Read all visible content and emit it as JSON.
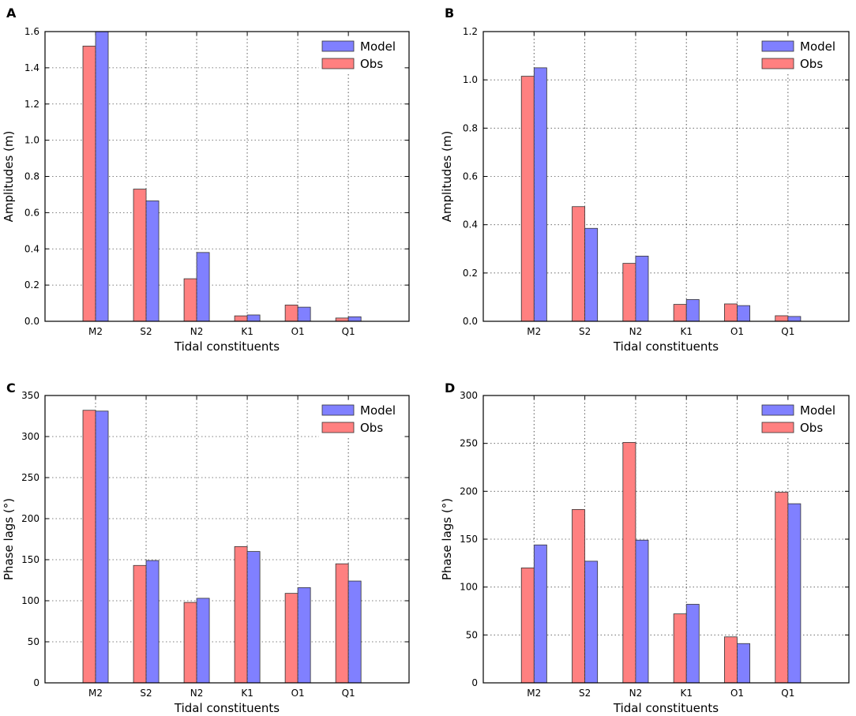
{
  "colors": {
    "model": "#8080ff",
    "obs": "#ff8080",
    "edge": "#333333"
  },
  "chart_data": [
    {
      "panel": "A",
      "type": "bar",
      "xlabel": "Tidal constituents",
      "ylabel": "Amplitudes (m)",
      "categories": [
        "M2",
        "S2",
        "N2",
        "K1",
        "O1",
        "Q1"
      ],
      "ylim": [
        0,
        1.6
      ],
      "yticks": [
        "0.0",
        "0.2",
        "0.4",
        "0.6",
        "0.8",
        "1.0",
        "1.2",
        "1.4",
        "1.6"
      ],
      "legend_position": "top-right",
      "series": [
        {
          "name": "Model",
          "values": [
            1.6,
            0.665,
            0.38,
            0.035,
            0.078,
            0.025
          ]
        },
        {
          "name": "Obs",
          "values": [
            1.52,
            0.73,
            0.235,
            0.03,
            0.09,
            0.018
          ]
        }
      ]
    },
    {
      "panel": "B",
      "type": "bar",
      "xlabel": "Tidal constituents",
      "ylabel": "Amplitudes (m)",
      "categories": [
        "M2",
        "S2",
        "N2",
        "K1",
        "O1",
        "Q1"
      ],
      "ylim": [
        0,
        1.2
      ],
      "yticks": [
        "0.0",
        "0.2",
        "0.4",
        "0.6",
        "0.8",
        "1.0",
        "1.2"
      ],
      "legend_position": "top-right",
      "series": [
        {
          "name": "Model",
          "values": [
            1.05,
            0.385,
            0.27,
            0.09,
            0.065,
            0.02
          ]
        },
        {
          "name": "Obs",
          "values": [
            1.015,
            0.475,
            0.24,
            0.07,
            0.072,
            0.023
          ]
        }
      ]
    },
    {
      "panel": "C",
      "type": "bar",
      "xlabel": "Tidal constituents",
      "ylabel": "Phase lags (°)",
      "categories": [
        "M2",
        "S2",
        "N2",
        "K1",
        "O1",
        "Q1"
      ],
      "ylim": [
        0,
        350
      ],
      "yticks": [
        "0",
        "50",
        "100",
        "150",
        "200",
        "250",
        "300",
        "350"
      ],
      "legend_position": "top-right",
      "series": [
        {
          "name": "Model",
          "values": [
            331,
            149,
            103,
            160,
            116,
            124
          ]
        },
        {
          "name": "Obs",
          "values": [
            332,
            143,
            98,
            166,
            109,
            145
          ]
        }
      ]
    },
    {
      "panel": "D",
      "type": "bar",
      "xlabel": "Tidal constituents",
      "ylabel": "Phase lags (°)",
      "categories": [
        "M2",
        "S2",
        "N2",
        "K1",
        "O1",
        "Q1"
      ],
      "ylim": [
        0,
        300
      ],
      "yticks": [
        "0",
        "50",
        "100",
        "150",
        "200",
        "250",
        "300"
      ],
      "legend_position": "top-right",
      "series": [
        {
          "name": "Model",
          "values": [
            144,
            127,
            149,
            82,
            41,
            187
          ]
        },
        {
          "name": "Obs",
          "values": [
            120,
            181,
            251,
            72,
            48,
            199
          ]
        }
      ]
    }
  ]
}
